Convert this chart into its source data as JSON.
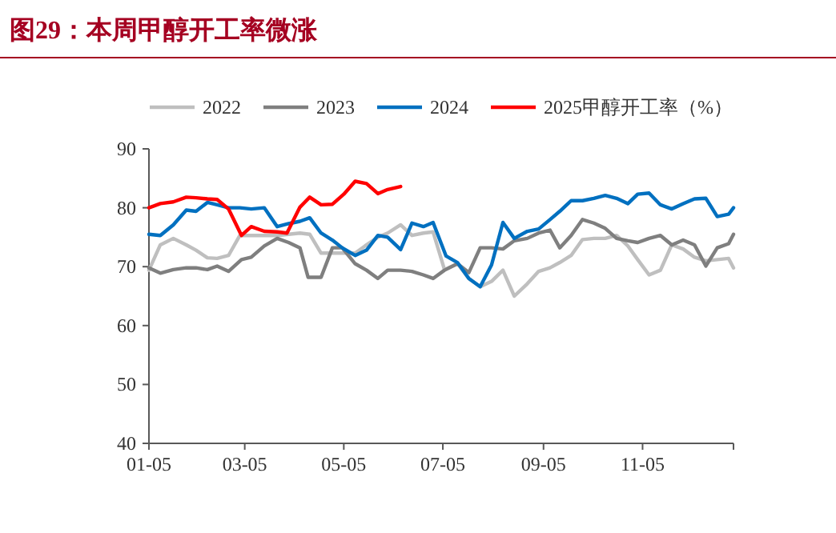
{
  "chart_data": {
    "type": "line",
    "title": "图29：本周甲醇开工率微涨",
    "xlim": [
      "--01-05",
      "--12-31"
    ],
    "xticks": [
      {
        "value": "--01-05",
        "label": "01-05"
      },
      {
        "value": "--03-05",
        "label": "03-05"
      },
      {
        "value": "--05-05",
        "label": "05-05"
      },
      {
        "value": "--07-05",
        "label": "07-05"
      },
      {
        "value": "--09-05",
        "label": "09-05"
      },
      {
        "value": "--11-05",
        "label": "11-05"
      },
      {
        "value": "--12-31",
        "label": null
      }
    ],
    "ylim": [
      40,
      90
    ],
    "yticks": [
      40,
      50,
      60,
      70,
      80,
      90
    ],
    "grid": false,
    "legend": "top",
    "marker": "none",
    "line_style": "solid",
    "series": [
      {
        "name": "2022",
        "color": "#bfbfbf",
        "x": [
          "--01-05",
          "--01-12",
          "--01-20",
          "--01-28",
          "--02-03",
          "--02-10",
          "--02-16",
          "--02-23",
          "--03-02",
          "--03-09",
          "--03-17",
          "--03-25",
          "--04-01",
          "--04-08",
          "--04-14",
          "--04-21",
          "--04-28",
          "--05-04",
          "--05-12",
          "--05-18",
          "--05-26",
          "--06-01",
          "--06-09",
          "--06-16",
          "--06-23",
          "--06-29",
          "--07-06",
          "--07-14",
          "--07-21",
          "--07-28",
          "--08-04",
          "--08-11",
          "--08-18",
          "--08-26",
          "--09-02",
          "--09-09",
          "--09-15",
          "--09-22",
          "--09-29",
          "--10-06",
          "--10-13",
          "--10-20",
          "--10-27",
          "--11-02",
          "--11-09",
          "--11-16",
          "--11-23",
          "--11-30",
          "--12-07",
          "--12-14",
          "--12-21",
          "--12-28",
          "--12-31"
        ],
        "values": [
          69.4,
          73.7,
          74.8,
          73.7,
          72.8,
          71.5,
          71.4,
          71.9,
          75.3,
          75.3,
          75.3,
          75.3,
          75.5,
          75.7,
          75.5,
          72.3,
          72.3,
          72.3,
          72.3,
          73.5,
          75,
          75.7,
          77.1,
          75.3,
          75.7,
          75.9,
          69.5,
          70.5,
          68,
          66.6,
          67.5,
          69.4,
          65,
          67.1,
          69.2,
          69.8,
          70.7,
          71.9,
          74.6,
          74.8,
          74.8,
          75.3,
          73.5,
          71.2,
          68.6,
          69.4,
          73.7,
          73,
          71.6,
          71,
          71.2,
          71.4,
          69.8
        ]
      },
      {
        "name": "2023",
        "color": "#7f7f7f",
        "x": [
          "--01-05",
          "--01-12",
          "--01-20",
          "--01-28",
          "--02-03",
          "--02-10",
          "--02-16",
          "--02-23",
          "--03-03",
          "--03-09",
          "--03-17",
          "--03-25",
          "--04-01",
          "--04-08",
          "--04-13",
          "--04-21",
          "--04-28",
          "--05-04",
          "--05-12",
          "--05-19",
          "--05-26",
          "--06-01",
          "--06-09",
          "--06-16",
          "--06-23",
          "--06-29",
          "--07-06",
          "--07-14",
          "--07-21",
          "--07-28",
          "--08-04",
          "--08-11",
          "--08-18",
          "--08-26",
          "--09-02",
          "--09-09",
          "--09-15",
          "--09-22",
          "--09-29",
          "--10-06",
          "--10-13",
          "--10-20",
          "--10-27",
          "--11-02",
          "--11-09",
          "--11-16",
          "--11-23",
          "--11-30",
          "--12-07",
          "--12-14",
          "--12-21",
          "--12-28",
          "--12-31"
        ],
        "values": [
          69.8,
          68.9,
          69.5,
          69.8,
          69.8,
          69.5,
          70.1,
          69.2,
          71.2,
          71.6,
          73.5,
          74.8,
          74.1,
          73.2,
          68.2,
          68.2,
          73.2,
          73.2,
          70.5,
          69.4,
          68,
          69.4,
          69.4,
          69.2,
          68.6,
          68,
          69.4,
          70.5,
          69,
          73.2,
          73.2,
          73,
          74.4,
          74.8,
          75.7,
          76.2,
          73.2,
          75.3,
          78,
          77.4,
          76.5,
          74.8,
          74.4,
          74.1,
          74.8,
          75.3,
          73.7,
          74.5,
          73.7,
          70.1,
          73.2,
          73.9,
          75.5
        ]
      },
      {
        "name": "2024",
        "color": "#0070c0",
        "x": [
          "--01-05",
          "--01-12",
          "--01-20",
          "--01-28",
          "--02-03",
          "--02-10",
          "--02-16",
          "--02-23",
          "--03-02",
          "--03-09",
          "--03-17",
          "--03-25",
          "--04-01",
          "--04-08",
          "--04-14",
          "--04-21",
          "--04-28",
          "--05-04",
          "--05-12",
          "--05-19",
          "--05-26",
          "--06-01",
          "--06-09",
          "--06-16",
          "--06-23",
          "--06-29",
          "--07-07",
          "--07-14",
          "--07-21",
          "--07-28",
          "--08-04",
          "--08-11",
          "--08-18",
          "--08-26",
          "--09-02",
          "--09-09",
          "--09-15",
          "--09-22",
          "--09-29",
          "--10-06",
          "--10-13",
          "--10-20",
          "--10-27",
          "--11-02",
          "--11-09",
          "--11-16",
          "--11-23",
          "--11-30",
          "--12-07",
          "--12-14",
          "--12-21",
          "--12-28",
          "--12-31"
        ],
        "values": [
          75.5,
          75.3,
          77.1,
          79.6,
          79.4,
          80.9,
          80.5,
          80,
          80,
          79.8,
          80,
          76.8,
          77.3,
          77.7,
          78.3,
          75.7,
          74.5,
          73.2,
          71.9,
          72.8,
          75.3,
          75,
          72.9,
          77.4,
          76.8,
          77.5,
          71.8,
          70.7,
          68,
          66.6,
          70.3,
          77.5,
          74.8,
          76,
          76.4,
          78,
          79.4,
          81.2,
          81.2,
          81.6,
          82.1,
          81.6,
          80.7,
          82.3,
          82.5,
          80.5,
          79.8,
          80.7,
          81.5,
          81.6,
          78.5,
          78.9,
          80
        ]
      },
      {
        "name": "2025甲醇开工率（%）",
        "color": "#ff0000",
        "x": [
          "--01-05",
          "--01-12",
          "--01-20",
          "--01-28",
          "--02-03",
          "--02-10",
          "--02-16",
          "--02-23",
          "--03-03",
          "--03-09",
          "--03-17",
          "--03-25",
          "--03-31",
          "--04-08",
          "--04-14",
          "--04-21",
          "--04-28",
          "--05-05",
          "--05-12",
          "--05-19",
          "--05-26",
          "--06-01",
          "--06-09"
        ],
        "values": [
          80,
          80.7,
          81,
          81.8,
          81.7,
          81.5,
          81.4,
          79.8,
          75.3,
          76.8,
          76,
          75.9,
          75.7,
          80.1,
          81.8,
          80.5,
          80.6,
          82.3,
          84.5,
          84.1,
          82.4,
          83.1,
          83.6
        ]
      }
    ]
  }
}
